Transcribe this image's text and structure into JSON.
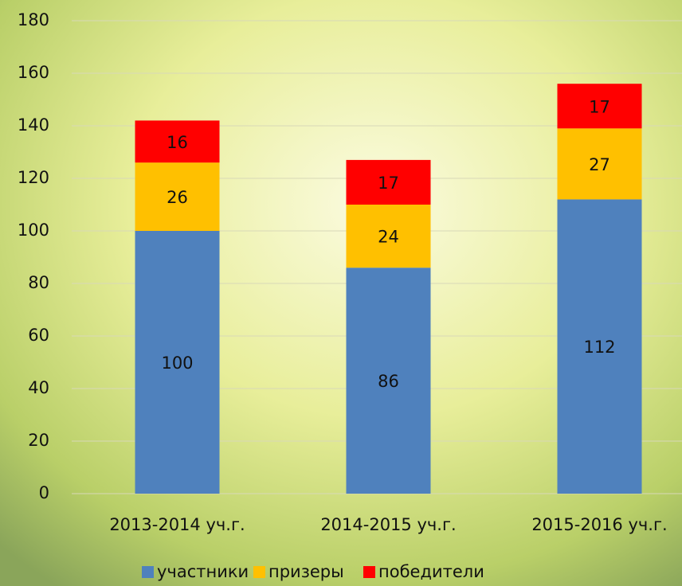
{
  "chart_data": {
    "type": "stacked_bar",
    "categories": [
      "2013-2014 уч.г.",
      "2014-2015 уч.г.",
      "2015-2016 уч.г."
    ],
    "series": [
      {
        "name": "участники",
        "color": "#4f81bd",
        "values": [
          100,
          86,
          112
        ]
      },
      {
        "name": "призеры",
        "color": "#ffc000",
        "values": [
          26,
          24,
          27
        ]
      },
      {
        "name": "победители",
        "color": "#ff0000",
        "values": [
          16,
          17,
          17
        ]
      }
    ],
    "ylim": [
      0,
      180
    ],
    "yticks": [
      0,
      20,
      40,
      60,
      80,
      100,
      120,
      140,
      160,
      180
    ],
    "grid": true,
    "legend": "bottom"
  }
}
